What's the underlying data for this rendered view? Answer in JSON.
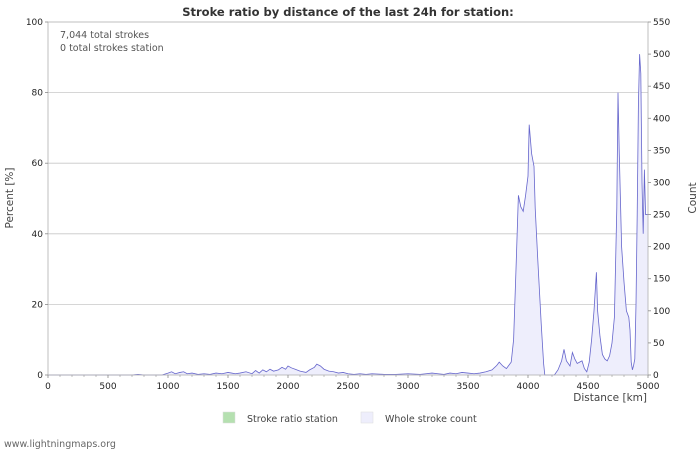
{
  "chart_data": {
    "type": "area",
    "title": "Stroke ratio by distance of the last 24h for station:",
    "xlabel": "Distance   [km]",
    "ylabel_left": "Percent   [%]",
    "ylabel_right": "Count",
    "xlim": [
      0,
      5000
    ],
    "ylim_left": [
      0,
      100
    ],
    "ylim_right": [
      0,
      550
    ],
    "x_ticks": [
      "0",
      "500",
      "1000",
      "1500",
      "2000",
      "2500",
      "3000",
      "3500",
      "4000",
      "4500",
      "5000"
    ],
    "y_left_ticks": [
      "0",
      "20",
      "40",
      "60",
      "80",
      "100"
    ],
    "y_right_ticks": [
      "0",
      "50",
      "100",
      "150",
      "200",
      "250",
      "300",
      "350",
      "400",
      "450",
      "500",
      "550"
    ],
    "grid": true,
    "annotations": [
      "7,044 total strokes",
      "0 total strokes station"
    ],
    "legend": [
      {
        "label": "Stroke ratio station",
        "color": "#b5e0b0"
      },
      {
        "label": "Whole stroke count",
        "color": "#eeeefc"
      }
    ],
    "legend_position": "bottom",
    "colors": {
      "fill": "#eeeefc",
      "line": "#6666cc",
      "grid": "#c8c8c8"
    },
    "series": [
      {
        "name": "Whole stroke count",
        "axis": "right",
        "points": [
          [
            0,
            0
          ],
          [
            700,
            0
          ],
          [
            750,
            1
          ],
          [
            800,
            0
          ],
          [
            950,
            0
          ],
          [
            1000,
            3
          ],
          [
            1030,
            5
          ],
          [
            1060,
            2
          ],
          [
            1100,
            4
          ],
          [
            1130,
            5
          ],
          [
            1160,
            2
          ],
          [
            1200,
            3
          ],
          [
            1250,
            1
          ],
          [
            1300,
            2
          ],
          [
            1350,
            1
          ],
          [
            1400,
            3
          ],
          [
            1450,
            2
          ],
          [
            1500,
            4
          ],
          [
            1530,
            3
          ],
          [
            1560,
            2
          ],
          [
            1600,
            3
          ],
          [
            1650,
            5
          ],
          [
            1700,
            2
          ],
          [
            1730,
            7
          ],
          [
            1760,
            3
          ],
          [
            1790,
            8
          ],
          [
            1820,
            5
          ],
          [
            1850,
            9
          ],
          [
            1880,
            6
          ],
          [
            1920,
            8
          ],
          [
            1950,
            12
          ],
          [
            1980,
            9
          ],
          [
            2000,
            14
          ],
          [
            2030,
            11
          ],
          [
            2060,
            9
          ],
          [
            2100,
            6
          ],
          [
            2150,
            4
          ],
          [
            2180,
            8
          ],
          [
            2220,
            12
          ],
          [
            2240,
            17
          ],
          [
            2270,
            14
          ],
          [
            2300,
            9
          ],
          [
            2340,
            6
          ],
          [
            2380,
            5
          ],
          [
            2420,
            3
          ],
          [
            2460,
            4
          ],
          [
            2500,
            2
          ],
          [
            2550,
            1
          ],
          [
            2600,
            2
          ],
          [
            2650,
            1
          ],
          [
            2700,
            2
          ],
          [
            2800,
            1
          ],
          [
            2900,
            1
          ],
          [
            3000,
            2
          ],
          [
            3100,
            1
          ],
          [
            3150,
            2
          ],
          [
            3200,
            3
          ],
          [
            3250,
            2
          ],
          [
            3300,
            1
          ],
          [
            3350,
            3
          ],
          [
            3400,
            2
          ],
          [
            3450,
            4
          ],
          [
            3500,
            3
          ],
          [
            3550,
            2
          ],
          [
            3600,
            3
          ],
          [
            3650,
            5
          ],
          [
            3700,
            8
          ],
          [
            3740,
            15
          ],
          [
            3760,
            20
          ],
          [
            3790,
            14
          ],
          [
            3820,
            10
          ],
          [
            3860,
            20
          ],
          [
            3880,
            55
          ],
          [
            3900,
            165
          ],
          [
            3920,
            280
          ],
          [
            3940,
            262
          ],
          [
            3960,
            255
          ],
          [
            3980,
            280
          ],
          [
            4000,
            310
          ],
          [
            4010,
            390
          ],
          [
            4030,
            345
          ],
          [
            4050,
            325
          ],
          [
            4060,
            260
          ],
          [
            4080,
            185
          ],
          [
            4090,
            150
          ],
          [
            4110,
            80
          ],
          [
            4130,
            18
          ],
          [
            4140,
            0
          ],
          [
            4220,
            0
          ],
          [
            4250,
            8
          ],
          [
            4280,
            22
          ],
          [
            4300,
            40
          ],
          [
            4320,
            22
          ],
          [
            4350,
            14
          ],
          [
            4370,
            35
          ],
          [
            4390,
            25
          ],
          [
            4410,
            18
          ],
          [
            4430,
            20
          ],
          [
            4450,
            22
          ],
          [
            4470,
            10
          ],
          [
            4490,
            5
          ],
          [
            4510,
            20
          ],
          [
            4530,
            55
          ],
          [
            4550,
            100
          ],
          [
            4570,
            160
          ],
          [
            4580,
            100
          ],
          [
            4600,
            60
          ],
          [
            4620,
            32
          ],
          [
            4640,
            25
          ],
          [
            4660,
            22
          ],
          [
            4680,
            30
          ],
          [
            4700,
            50
          ],
          [
            4720,
            90
          ],
          [
            4740,
            260
          ],
          [
            4750,
            440
          ],
          [
            4760,
            350
          ],
          [
            4780,
            200
          ],
          [
            4800,
            145
          ],
          [
            4820,
            100
          ],
          [
            4840,
            90
          ],
          [
            4850,
            70
          ],
          [
            4860,
            20
          ],
          [
            4870,
            8
          ],
          [
            4880,
            15
          ],
          [
            4890,
            25
          ],
          [
            4900,
            110
          ],
          [
            4910,
            250
          ],
          [
            4920,
            420
          ],
          [
            4930,
            500
          ],
          [
            4940,
            470
          ],
          [
            4950,
            300
          ],
          [
            4960,
            220
          ],
          [
            4970,
            320
          ],
          [
            4980,
            250
          ],
          [
            5000,
            250
          ]
        ]
      },
      {
        "name": "Stroke ratio station",
        "axis": "left",
        "points": []
      }
    ]
  },
  "footer": {
    "credit": "www.lightningmaps.org"
  }
}
